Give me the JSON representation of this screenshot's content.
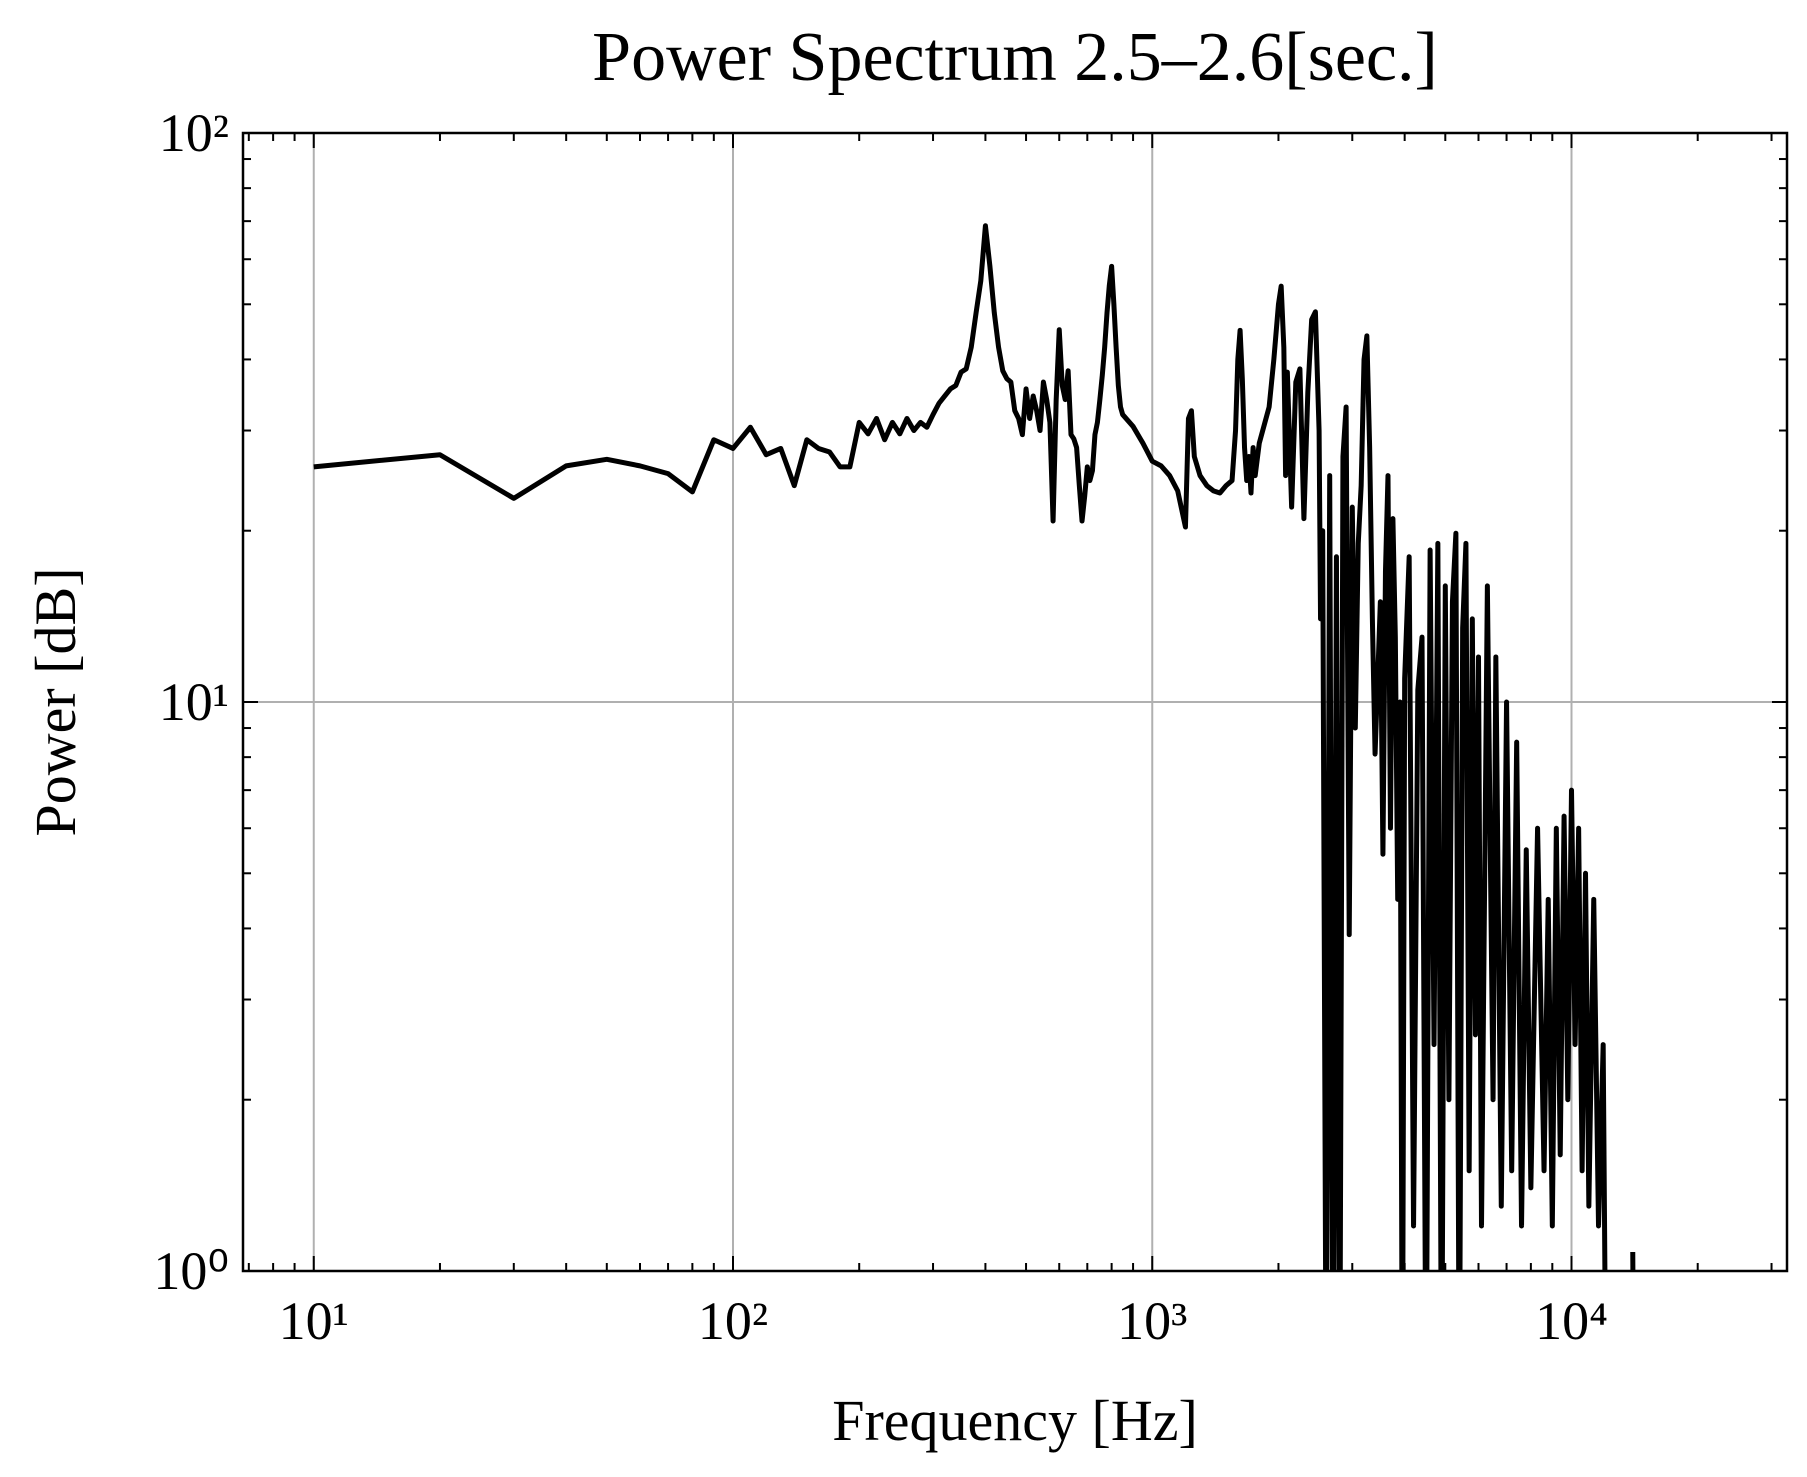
{
  "chart_data": {
    "type": "line",
    "title": "Power Spectrum 2.5–2.6[sec.]",
    "xlabel": "Frequency [Hz]",
    "ylabel": "Power [dB]",
    "xscale": "log",
    "yscale": "log",
    "grid": true,
    "xlim": [
      6.78,
      32660
    ],
    "ylim": [
      1,
      100
    ],
    "xticks": [
      {
        "value": 10,
        "label": "10¹"
      },
      {
        "value": 100,
        "label": "10²"
      },
      {
        "value": 1000,
        "label": "10³"
      },
      {
        "value": 10000,
        "label": "10⁴"
      }
    ],
    "yticks": [
      {
        "value": 1,
        "label": "10⁰"
      },
      {
        "value": 10,
        "label": "10¹"
      },
      {
        "value": 100,
        "label": "10²"
      }
    ],
    "x": [
      10,
      20,
      30,
      40,
      50,
      60,
      70,
      80,
      90,
      100,
      110,
      120,
      130,
      140,
      150,
      160,
      170,
      180,
      190,
      200,
      210,
      220,
      230,
      240,
      250,
      260,
      270,
      280,
      290,
      300,
      310,
      320,
      330,
      340,
      350,
      360,
      370,
      380,
      390,
      400,
      410,
      420,
      430,
      440,
      450,
      460,
      470,
      480,
      490,
      500,
      510,
      520,
      530,
      540,
      550,
      560,
      570,
      580,
      590,
      600,
      610,
      620,
      630,
      640,
      650,
      660,
      670,
      680,
      690,
      700,
      710,
      720,
      730,
      740,
      750,
      760,
      770,
      780,
      790,
      800,
      810,
      820,
      830,
      840,
      850,
      900,
      950,
      1000,
      1050,
      1100,
      1150,
      1200,
      1220,
      1240,
      1260,
      1300,
      1350,
      1400,
      1450,
      1500,
      1550,
      1580,
      1600,
      1620,
      1640,
      1660,
      1680,
      1700,
      1720,
      1740,
      1760,
      1800,
      1900,
      1950,
      2000,
      2030,
      2060,
      2080,
      2100,
      2150,
      2200,
      2250,
      2300,
      2350,
      2400,
      2450,
      2500,
      2520,
      2550,
      2600,
      2650,
      2700,
      2750,
      2800,
      2850,
      2900,
      2950,
      3000,
      3050,
      3100,
      3150,
      3200,
      3250,
      3300,
      3350,
      3400,
      3450,
      3500,
      3550,
      3600,
      3650,
      3700,
      3750,
      3800,
      3850,
      3900,
      3950,
      4000,
      4100,
      4200,
      4300,
      4400,
      4500,
      4600,
      4700,
      4800,
      4900,
      5000,
      5100,
      5200,
      5300,
      5400,
      5500,
      5600,
      5700,
      5800,
      5900,
      6000,
      6100,
      6300,
      6500,
      6600,
      6800,
      7000,
      7200,
      7400,
      7600,
      7800,
      8000,
      8300,
      8600,
      8800,
      9000,
      9200,
      9400,
      9600,
      9800,
      10000,
      10200,
      10400,
      10600,
      10800,
      11000,
      11300,
      11600,
      11900,
      12100,
      13000,
      14000,
      14100
    ],
    "series": [
      {
        "color": "#000000",
        "values": [
          25.9,
          27.2,
          22.8,
          26.0,
          26.7,
          26.0,
          25.2,
          23.4,
          28.9,
          27.9,
          30.4,
          27.2,
          27.9,
          24.0,
          28.9,
          27.9,
          27.5,
          25.9,
          25.9,
          31.0,
          29.6,
          31.5,
          28.9,
          31.0,
          29.6,
          31.5,
          30.0,
          31.0,
          30.4,
          32.0,
          33.5,
          34.5,
          35.5,
          36.0,
          38.0,
          38.5,
          42.0,
          48.3,
          55,
          68.7,
          58.3,
          48.3,
          42.0,
          38.2,
          37.0,
          36.5,
          32.5,
          31.5,
          29.5,
          35.5,
          31.5,
          34.5,
          32.5,
          30.0,
          36.5,
          34.0,
          31.0,
          20.8,
          34.0,
          45.1,
          36.0,
          34.0,
          38.2,
          29.5,
          29.0,
          28.0,
          24.0,
          20.8,
          23.0,
          25.9,
          24.5,
          25.5,
          29.5,
          31.0,
          34.0,
          37.5,
          42.0,
          48.3,
          54,
          58.3,
          50,
          42.0,
          36.0,
          33.0,
          32.0,
          30.5,
          28.5,
          26.5,
          26.0,
          25.0,
          23.5,
          20.3,
          31.5,
          32.5,
          27.0,
          25.0,
          24.0,
          23.5,
          23.3,
          24.0,
          24.5,
          30,
          40.0,
          45,
          37,
          28,
          24.5,
          27.0,
          23.3,
          28.0,
          25,
          28.5,
          33,
          40,
          50,
          53.8,
          42,
          25,
          38,
          22,
          36.5,
          38.5,
          21,
          35,
          47,
          48.5,
          30,
          14,
          20,
          0.5,
          25,
          0.5,
          18,
          0.5,
          27,
          33,
          3.9,
          22,
          9,
          19,
          24,
          40,
          44,
          28,
          14,
          8.1,
          11,
          15,
          5.4,
          17,
          25,
          6.0,
          21,
          13,
          4.5,
          10,
          0.5,
          11,
          18,
          1.2,
          10.5,
          13,
          0.5,
          18.5,
          2.5,
          19,
          0.5,
          16,
          2.0,
          15,
          19.8,
          0.5,
          13.5,
          19,
          1.5,
          14,
          2.6,
          12,
          1.2,
          16,
          2.0,
          12,
          1.3,
          10,
          1.5,
          8.5,
          1.2,
          5.5,
          1.4,
          6,
          1.5,
          4.5,
          1.2,
          6.0,
          1.6,
          6.3,
          2.0,
          7.0,
          2.5,
          6.0,
          1.5,
          5.0,
          1.3,
          4.5,
          1.2,
          2.5,
          0.5,
          null,
          1.08,
          0.5
        ]
      }
    ]
  }
}
